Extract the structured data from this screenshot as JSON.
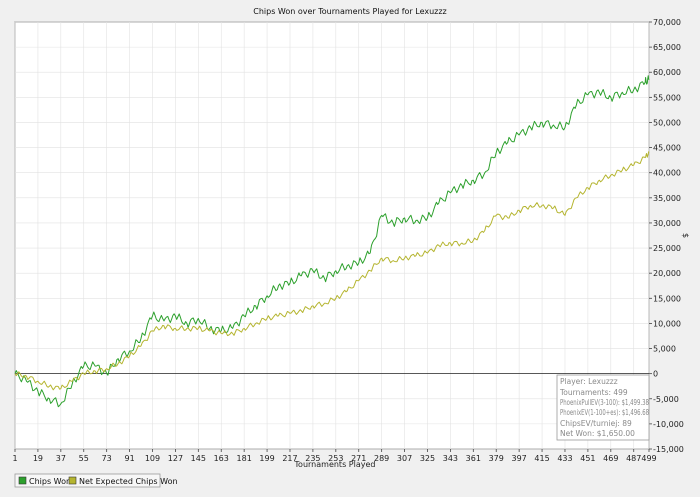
{
  "chart_data": {
    "type": "line",
    "title": "Chips Won over Tournaments Played for  Lexuzzz",
    "xlabel": "Tournaments Played",
    "ylabel": "$",
    "xlim": [
      1,
      499
    ],
    "ylim": [
      -15000,
      70000
    ],
    "x_ticks": [
      "1",
      "19",
      "37",
      "55",
      "73",
      "91",
      "109",
      "127",
      "145",
      "163",
      "181",
      "199",
      "217",
      "235",
      "253",
      "271",
      "289",
      "307",
      "325",
      "343",
      "361",
      "379",
      "397",
      "415",
      "433",
      "451",
      "469",
      "487",
      "499"
    ],
    "y_ticks": [
      "70,000",
      "65,000",
      "60,000",
      "55,000",
      "50,000",
      "45,000",
      "40,000",
      "35,000",
      "30,000",
      "25,000",
      "20,000",
      "15,000",
      "10,000",
      "5,000",
      "0",
      "-5,000",
      "-10,000",
      "-15,000"
    ],
    "grid": true,
    "legend_position": "bottom-left",
    "series": [
      {
        "name": "Chips Won",
        "color": "#2ca02c",
        "x": [
          1,
          10,
          19,
          28,
          37,
          46,
          55,
          64,
          73,
          82,
          91,
          100,
          109,
          118,
          127,
          136,
          145,
          154,
          163,
          172,
          181,
          190,
          199,
          208,
          217,
          226,
          235,
          244,
          253,
          262,
          271,
          280,
          289,
          298,
          307,
          316,
          325,
          334,
          343,
          352,
          361,
          370,
          379,
          388,
          397,
          406,
          415,
          424,
          433,
          442,
          451,
          460,
          469,
          478,
          487,
          496,
          499
        ],
        "y": [
          0,
          -1500,
          -3500,
          -5000,
          -6000,
          -2000,
          1500,
          1500,
          0,
          3000,
          4500,
          7000,
          11500,
          10500,
          11500,
          10000,
          11000,
          9000,
          8500,
          9000,
          11500,
          13500,
          15500,
          17500,
          18000,
          19500,
          20500,
          19000,
          20500,
          21500,
          22000,
          24000,
          31500,
          30000,
          31000,
          30500,
          31000,
          34000,
          36000,
          37500,
          38500,
          40000,
          44000,
          46000,
          47500,
          49000,
          50000,
          49500,
          49000,
          53500,
          55500,
          56000,
          55000,
          56000,
          56500,
          58000,
          58500
        ]
      },
      {
        "name": "Net Expected Chips Won",
        "color": "#b5b530",
        "x": [
          1,
          10,
          19,
          28,
          37,
          46,
          55,
          64,
          73,
          82,
          91,
          100,
          109,
          118,
          127,
          136,
          145,
          154,
          163,
          172,
          181,
          190,
          199,
          208,
          217,
          226,
          235,
          244,
          253,
          262,
          271,
          280,
          289,
          298,
          307,
          316,
          325,
          334,
          343,
          352,
          361,
          370,
          379,
          388,
          397,
          406,
          415,
          424,
          433,
          442,
          451,
          460,
          469,
          478,
          487,
          496,
          499
        ],
        "y": [
          0,
          -500,
          -1500,
          -2500,
          -3000,
          -1500,
          0,
          500,
          1000,
          2000,
          3500,
          5500,
          8500,
          9500,
          9000,
          9000,
          9000,
          8500,
          8000,
          8000,
          9000,
          10000,
          11000,
          11500,
          12000,
          12500,
          13500,
          14000,
          15000,
          16500,
          18500,
          20500,
          23000,
          22500,
          23000,
          23500,
          24000,
          25500,
          26000,
          26000,
          26500,
          28500,
          31500,
          31000,
          32500,
          33500,
          33500,
          33000,
          31500,
          35000,
          37000,
          38500,
          39500,
          40500,
          41500,
          43000,
          44000
        ]
      }
    ]
  },
  "info_box": {
    "player": "Player: Lexuzzz",
    "tournaments": "Tournaments: 499",
    "pull_ev": "PhoenixPullEV(3-100): $1,499.38",
    "ev": "PhoenixEV(1-100+es): $1,496.68",
    "chips_ev": "ChipsEV/turniej: 89",
    "net_won": "Net Won: $1,650.00"
  },
  "colors": {
    "chips_won": "#2ca02c",
    "net_expected": "#b5b530",
    "grid": "#e2e2e2",
    "zero_line": "#222222",
    "plot_bg": "#ffffff",
    "outer_bg": "#f0f0f0"
  }
}
